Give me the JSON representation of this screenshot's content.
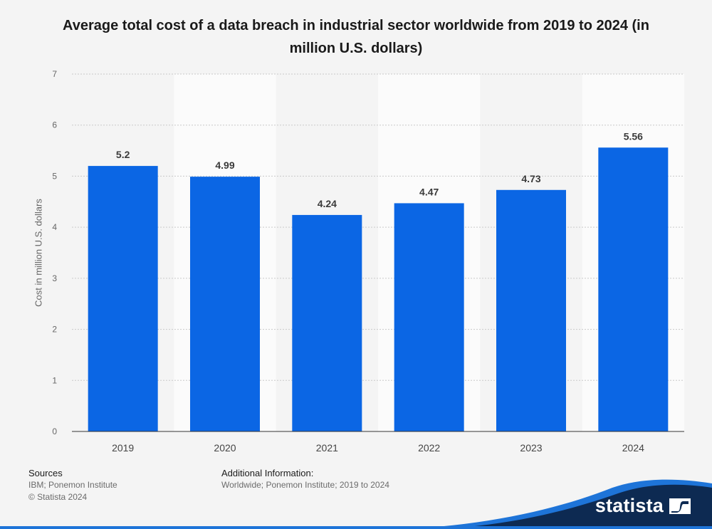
{
  "page": {
    "title": "Average total cost of a data breach in industrial sector worldwide from 2019 to 2024 (in million U.S. dollars)"
  },
  "chart_data": {
    "type": "bar",
    "title": "Average total cost of a data breach in industrial sector worldwide from 2019 to 2024 (in million U.S. dollars)",
    "xlabel": "",
    "ylabel": "Cost in million U.S. dollars",
    "categories": [
      "2019",
      "2020",
      "2021",
      "2022",
      "2023",
      "2024"
    ],
    "values": [
      5.2,
      4.99,
      4.24,
      4.47,
      4.73,
      5.56
    ],
    "value_labels": [
      "5.2",
      "4.99",
      "4.24",
      "4.47",
      "4.73",
      "5.56"
    ],
    "yticks": [
      0,
      1,
      2,
      3,
      4,
      5,
      6,
      7
    ],
    "ylim": [
      0,
      7
    ],
    "grid": true,
    "bar_color": "#0b66e4",
    "legend": "none"
  },
  "footer": {
    "sources_heading": "Sources",
    "sources_line1": "IBM; Ponemon Institute",
    "sources_line2": "© Statista 2024",
    "additional_heading": "Additional Information:",
    "additional_text": "Worldwide; Ponemon Institute; 2019 to 2024"
  },
  "brand": {
    "name": "statista",
    "color": "#0d2a52",
    "accent": "#1e74d8"
  }
}
